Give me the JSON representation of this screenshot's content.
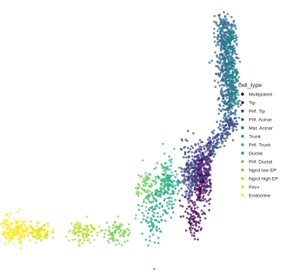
{
  "chart_data": {
    "type": "scatter",
    "title": "",
    "xlabel": "",
    "ylabel": "",
    "axes_visible": false,
    "grid": false,
    "legend_position": "right",
    "legend_title": "cell_type",
    "marker_opacity": 0.72,
    "series": [
      {
        "name": "Multipotent",
        "color": "#440154",
        "clusters": [
          {
            "cx": 0.26,
            "cy": 0.62,
            "sx": 0.022,
            "sy": 0.05,
            "n": 220
          },
          {
            "cx": 0.22,
            "cy": 0.76,
            "sx": 0.02,
            "sy": 0.04,
            "n": 80
          }
        ]
      },
      {
        "name": "Tip",
        "color": "#482878",
        "clusters": [
          {
            "cx": 0.3,
            "cy": 0.58,
            "sx": 0.02,
            "sy": 0.04,
            "n": 140
          }
        ]
      },
      {
        "name": "Prlf. Tip",
        "color": "#3e4a89",
        "clusters": [
          {
            "cx": 0.22,
            "cy": 0.6,
            "sx": 0.025,
            "sy": 0.06,
            "n": 200
          }
        ]
      },
      {
        "name": "Prlf. Acinar",
        "color": "#31688e",
        "clusters": [
          {
            "cx": 0.52,
            "cy": 0.32,
            "sx": 0.03,
            "sy": 0.04,
            "n": 90
          }
        ]
      },
      {
        "name": "Mat. Acinar",
        "color": "#26828e",
        "clusters": [
          {
            "cx": 0.55,
            "cy": 0.28,
            "sx": 0.025,
            "sy": 0.035,
            "n": 70
          }
        ]
      },
      {
        "name": "Trunk",
        "color": "#1f9e89",
        "clusters": [
          {
            "cx": 0.12,
            "cy": 0.66,
            "sx": 0.022,
            "sy": 0.05,
            "n": 90
          }
        ]
      },
      {
        "name": "Prlf. Trunk",
        "color": "#35b779",
        "clusters": [
          {
            "cx": 0.1,
            "cy": 0.62,
            "sx": 0.02,
            "sy": 0.045,
            "n": 80
          }
        ]
      },
      {
        "name": "Ductal",
        "color": "#22a884",
        "clusters": [
          {
            "cx": 0.05,
            "cy": 0.74,
            "sx": 0.025,
            "sy": 0.06,
            "n": 100
          }
        ]
      },
      {
        "name": "Prlf. Ductal",
        "color": "#6ece58",
        "clusters": [
          {
            "cx": 0.02,
            "cy": 0.66,
            "sx": 0.02,
            "sy": 0.05,
            "n": 70
          }
        ]
      },
      {
        "name": "Ngn3 low EP",
        "color": "#7ad151",
        "clusters": [
          {
            "cx": -0.1,
            "cy": 0.82,
            "sx": 0.03,
            "sy": 0.02,
            "n": 80
          }
        ]
      },
      {
        "name": "Ngn3 high EP",
        "color": "#b5de2b",
        "clusters": [
          {
            "cx": -0.25,
            "cy": 0.82,
            "sx": 0.03,
            "sy": 0.02,
            "n": 90
          }
        ]
      },
      {
        "name": "Fev+",
        "color": "#e5e419",
        "clusters": [
          {
            "cx": -0.44,
            "cy": 0.82,
            "sx": 0.025,
            "sy": 0.02,
            "n": 90
          }
        ]
      },
      {
        "name": "Endocrine",
        "color": "#fde725",
        "clusters": [
          {
            "cx": -0.54,
            "cy": 0.81,
            "sx": 0.03,
            "sy": 0.025,
            "n": 160
          }
        ]
      }
    ],
    "note_clusters": "cluster centers in abstract embedding units; x right, y down"
  }
}
